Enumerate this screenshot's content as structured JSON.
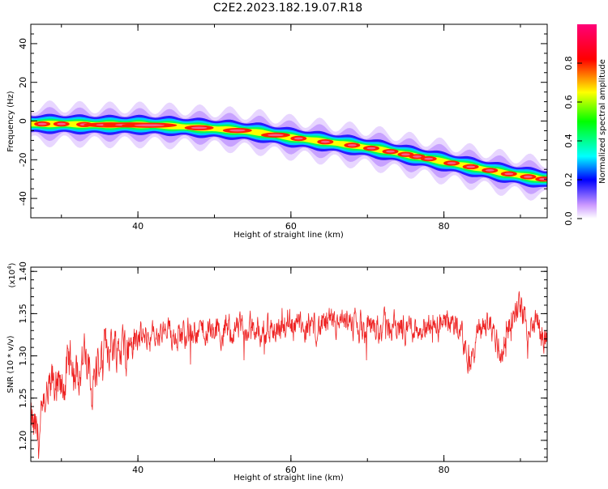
{
  "title": "C2E2.2023.182.19.07.R18",
  "chart_data": [
    {
      "type": "heatmap",
      "xlabel": "Height of straight line (km)",
      "ylabel": "Frequency (Hz)",
      "xlim": [
        26,
        93.5
      ],
      "ylim": [
        -50,
        50
      ],
      "xticks": [
        40,
        60,
        80
      ],
      "yticks": [
        -40,
        -20,
        0,
        20,
        40
      ],
      "colorbar": {
        "label": "Normalized spectral amplitude",
        "range": [
          0,
          1
        ],
        "ticks": [
          "0.0",
          "0.2",
          "0.4",
          "0.6",
          "0.8"
        ],
        "colors": [
          "#ffffff",
          "#cc99ff",
          "#0000ff",
          "#00ffff",
          "#00ff00",
          "#ffff00",
          "#ff0000",
          "#ff0077"
        ]
      },
      "ridge": {
        "x": [
          26,
          30,
          35,
          40,
          44,
          48,
          52,
          56,
          60,
          64,
          68,
          72,
          76,
          80,
          84,
          88,
          93
        ],
        "y": [
          -1.5,
          -1.5,
          -2,
          -2,
          -2.5,
          -3.5,
          -4.5,
          -6,
          -8.5,
          -10.5,
          -12.5,
          -15,
          -18,
          -21,
          -24,
          -27,
          -30
        ]
      }
    },
    {
      "type": "line",
      "xlabel": "Height of straight line (km)",
      "ylabel": "SNR (10 * v/v)",
      "yunit": "(x10",
      "yunit_exp": "4",
      "yunit_close": ")",
      "xlim": [
        26,
        93.5
      ],
      "ylim": [
        1.175,
        1.405
      ],
      "xticks": [
        40,
        60,
        80
      ],
      "yticks": [
        "1.20",
        "1.25",
        "1.30",
        "1.35",
        "1.40"
      ],
      "color": "#ee2222",
      "trend": {
        "x": [
          26,
          27,
          28,
          29,
          30,
          31,
          32,
          33,
          34,
          35,
          36,
          38,
          40,
          44,
          48,
          52,
          56,
          60,
          64,
          68,
          72,
          76,
          80,
          82,
          83.5,
          84.5,
          86,
          87.5,
          88.5,
          90,
          91,
          92,
          93,
          93.5
        ],
        "y": [
          1.22,
          1.2,
          1.245,
          1.27,
          1.255,
          1.29,
          1.28,
          1.3,
          1.26,
          1.3,
          1.315,
          1.31,
          1.32,
          1.325,
          1.33,
          1.33,
          1.33,
          1.335,
          1.335,
          1.335,
          1.335,
          1.335,
          1.335,
          1.335,
          1.29,
          1.33,
          1.34,
          1.3,
          1.34,
          1.36,
          1.33,
          1.345,
          1.32,
          1.33
        ]
      }
    }
  ]
}
